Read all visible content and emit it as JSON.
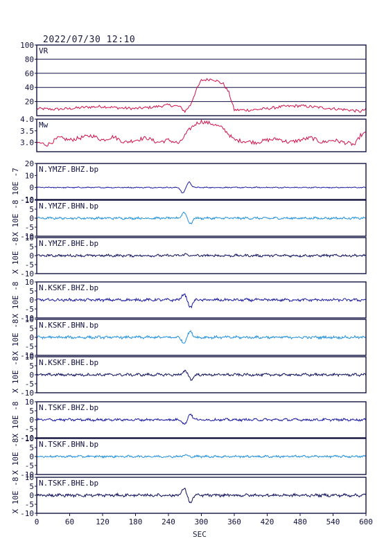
{
  "title": "2022/07/30 12:10",
  "xlabel": "SEC",
  "xlim": [
    0,
    600
  ],
  "xticks": [
    0,
    60,
    120,
    180,
    240,
    300,
    360,
    420,
    480,
    540,
    600
  ],
  "colors": {
    "frame": "#101040",
    "vr_mw": "#d0104a",
    "bhz": "#1a1aa0",
    "bhn": "#2090e0",
    "bhe": "#101060"
  },
  "chart_data": [
    {
      "type": "line",
      "label": "VR",
      "ylim": [
        0,
        100
      ],
      "yticks": [
        20,
        40,
        60,
        80,
        100
      ],
      "grid": true,
      "color": "#d0104a",
      "x": [
        0,
        30,
        60,
        90,
        120,
        150,
        180,
        210,
        240,
        260,
        270,
        280,
        290,
        300,
        320,
        340,
        350,
        360,
        390,
        420,
        450,
        480,
        510,
        540,
        570,
        590,
        600
      ],
      "y": [
        10,
        9,
        10,
        12,
        13,
        11,
        10,
        12,
        15,
        13,
        6,
        15,
        35,
        50,
        52,
        45,
        33,
        8,
        8,
        10,
        13,
        14,
        12,
        10,
        8,
        6,
        9
      ]
    },
    {
      "type": "line",
      "label": "Mw",
      "ylim": [
        2.6,
        4.0
      ],
      "yticks": [
        3.0,
        3.5,
        4.0
      ],
      "grid": false,
      "color": "#d0104a",
      "x": [
        0,
        20,
        40,
        60,
        80,
        100,
        120,
        140,
        160,
        180,
        200,
        220,
        240,
        260,
        270,
        280,
        290,
        300,
        320,
        340,
        360,
        380,
        400,
        420,
        440,
        460,
        480,
        500,
        520,
        540,
        560,
        580,
        590,
        600
      ],
      "y": [
        3.0,
        2.9,
        3.2,
        3.1,
        3.2,
        3.3,
        3.1,
        3.25,
        3.0,
        3.1,
        3.2,
        3.0,
        3.1,
        2.95,
        3.3,
        3.6,
        3.8,
        3.9,
        3.8,
        3.6,
        3.1,
        3.05,
        3.0,
        3.1,
        3.15,
        3.0,
        3.1,
        3.2,
        3.0,
        3.1,
        3.0,
        2.9,
        3.3,
        3.4
      ]
    },
    {
      "type": "line",
      "label": "N.YMZF.BHZ.bp",
      "ylabel": "10E -7",
      "ylim": [
        -10,
        20
      ],
      "yticks": [
        -10,
        0,
        10,
        20
      ],
      "color": "#1a1aa0",
      "noise": 0.35,
      "events": [
        {
          "x": 266,
          "a": -4.5
        },
        {
          "x": 278,
          "a": 4.5
        }
      ]
    },
    {
      "type": "line",
      "label": "N.YMZF.BHN.bp",
      "ylabel": "X 10E -8",
      "ylim": [
        -10,
        10
      ],
      "yticks": [
        -10,
        -5,
        0,
        5,
        10
      ],
      "color": "#2090e0",
      "noise": 0.5,
      "events": [
        {
          "x": 268,
          "a": 3.5
        },
        {
          "x": 280,
          "a": -3.0
        }
      ]
    },
    {
      "type": "line",
      "label": "N.YMZF.BHE.bp",
      "ylabel": "X 10E -8",
      "ylim": [
        -10,
        10
      ],
      "yticks": [
        -10,
        -5,
        0,
        5,
        10
      ],
      "color": "#101060",
      "noise": 0.55,
      "events": [
        {
          "x": 270,
          "a": 0.8
        }
      ]
    },
    {
      "type": "line",
      "label": "N.KSKF.BHZ.bp",
      "ylabel": "X 10E -8",
      "ylim": [
        -10,
        10
      ],
      "yticks": [
        -10,
        -5,
        0,
        5,
        10
      ],
      "color": "#1a1aa0",
      "noise": 0.6,
      "events": [
        {
          "x": 268,
          "a": 3.5
        },
        {
          "x": 280,
          "a": -4.0
        }
      ]
    },
    {
      "type": "line",
      "label": "N.KSKF.BHN.bp",
      "ylabel": "X 10E -8",
      "ylim": [
        -10,
        10
      ],
      "yticks": [
        -10,
        -5,
        0,
        5,
        10
      ],
      "color": "#2090e0",
      "noise": 0.6,
      "events": [
        {
          "x": 268,
          "a": -3.0
        },
        {
          "x": 280,
          "a": 3.5
        }
      ]
    },
    {
      "type": "line",
      "label": "N.KSKF.BHE.bp",
      "ylabel": "X 10E -8",
      "ylim": [
        -10,
        10
      ],
      "yticks": [
        -10,
        -5,
        0,
        5,
        10
      ],
      "color": "#101060",
      "noise": 0.6,
      "events": [
        {
          "x": 270,
          "a": 2.0
        },
        {
          "x": 282,
          "a": -2.5
        }
      ]
    },
    {
      "type": "line",
      "label": "N.TSKF.BHZ.bp",
      "ylabel": "X 10E -8",
      "ylim": [
        -10,
        10
      ],
      "yticks": [
        -10,
        -5,
        0,
        5,
        10
      ],
      "color": "#1a1aa0",
      "noise": 0.55,
      "events": [
        {
          "x": 270,
          "a": -2.5
        },
        {
          "x": 280,
          "a": 3.5
        }
      ]
    },
    {
      "type": "line",
      "label": "N.TSKF.BHN.bp",
      "ylabel": "X 10E -8",
      "ylim": [
        -10,
        10
      ],
      "yticks": [
        -10,
        -5,
        0,
        5,
        10
      ],
      "color": "#2090e0",
      "noise": 0.5,
      "events": [
        {
          "x": 270,
          "a": 0.8
        }
      ]
    },
    {
      "type": "line",
      "label": "N.TSKF.BHE.bp",
      "ylabel": "X 10E -8",
      "ylim": [
        -10,
        10
      ],
      "yticks": [
        -10,
        -5,
        0,
        5,
        10
      ],
      "color": "#101060",
      "noise": 0.65,
      "events": [
        {
          "x": 268,
          "a": 4.0
        },
        {
          "x": 280,
          "a": -4.0
        }
      ]
    }
  ]
}
